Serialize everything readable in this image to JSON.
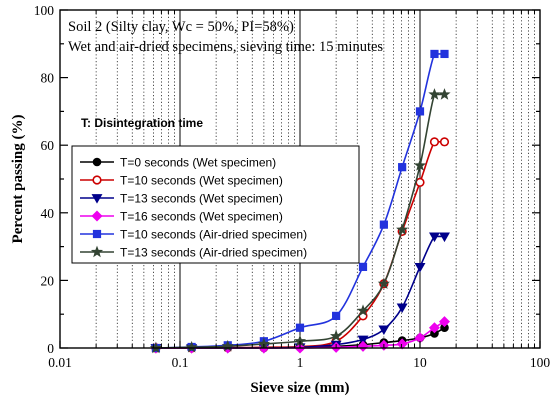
{
  "chart_data": {
    "type": "line",
    "x_scale": "log",
    "xlim": [
      0.01,
      100
    ],
    "ylim": [
      0,
      100
    ],
    "xlabel": "Sieve size (mm)",
    "ylabel": "Percent passing  (%)",
    "x_tick_labels": [
      "0.01",
      "0.1",
      "1",
      "10",
      "100"
    ],
    "x_tick_values": [
      0.01,
      0.1,
      1,
      10,
      100
    ],
    "y_tick_labels": [
      "0",
      "20",
      "40",
      "60",
      "80",
      "100"
    ],
    "y_tick_values": [
      0,
      20,
      40,
      60,
      80,
      100
    ],
    "grid": true,
    "legend_position": "center-left",
    "annotations": [
      "Soil 2 (Silty clay, Wc = 50%, PI=58%)",
      "Wet and air-dried specimens, sieving time: 15 minutes",
      "T: Disintegration time"
    ],
    "series": [
      {
        "name": "T=0  seconds (Wet specimen)",
        "color": "#000000",
        "marker": "circle",
        "filled": true,
        "x": [
          0.063,
          0.125,
          0.25,
          0.5,
          1,
          2,
          3.35,
          5,
          7.1,
          10,
          13.2,
          16
        ],
        "y": [
          0,
          0,
          0,
          0,
          0.2,
          0.5,
          1,
          1.6,
          2.2,
          3,
          4.3,
          6
        ]
      },
      {
        "name": "T=10 seconds (Wet specimen)",
        "color": "#cc0000",
        "marker": "circle",
        "filled": false,
        "x": [
          0.063,
          0.125,
          0.25,
          0.5,
          1,
          2,
          3.35,
          5,
          7.1,
          10,
          13.2,
          16
        ],
        "y": [
          0,
          0,
          0.1,
          0.2,
          0.4,
          2,
          9.5,
          19,
          34.5,
          49,
          61,
          61
        ]
      },
      {
        "name": "T=13 seconds (Wet specimen)",
        "color": "#00008b",
        "marker": "triangle-down",
        "filled": true,
        "x": [
          0.063,
          0.125,
          0.25,
          0.5,
          1,
          2,
          3.35,
          5,
          7.1,
          10,
          13.2,
          16
        ],
        "y": [
          0,
          0,
          0,
          0,
          0.2,
          1,
          2.5,
          5.5,
          12,
          24,
          33,
          33
        ]
      },
      {
        "name": "T=16 seconds (Wet specimen)",
        "color": "#ee00ee",
        "marker": "diamond",
        "filled": true,
        "x": [
          0.063,
          0.125,
          0.25,
          0.5,
          1,
          2,
          3.35,
          5,
          7.1,
          10,
          13.2,
          16
        ],
        "y": [
          0,
          0,
          0,
          0,
          0,
          0.2,
          0.5,
          0.8,
          1.2,
          3,
          6,
          7.8
        ]
      },
      {
        "name": "T=10 seconds (Air-dried specimen)",
        "color": "#2233dd",
        "marker": "square",
        "filled": true,
        "x": [
          0.063,
          0.125,
          0.25,
          0.5,
          1,
          2,
          3.35,
          5,
          7.1,
          10,
          13.2,
          16
        ],
        "y": [
          0,
          0.3,
          0.8,
          2,
          6,
          9.5,
          24,
          36.5,
          53.5,
          70,
          87,
          87
        ]
      },
      {
        "name": "T=13 seconds (Air-dried specimen)",
        "color": "#334433",
        "marker": "star",
        "filled": true,
        "x": [
          0.063,
          0.125,
          0.25,
          0.5,
          1,
          2,
          3.35,
          5,
          7.1,
          10,
          13.2,
          16
        ],
        "y": [
          0,
          0.2,
          0.5,
          1.2,
          2,
          3.5,
          11,
          19,
          35,
          54,
          75,
          75
        ]
      }
    ]
  }
}
